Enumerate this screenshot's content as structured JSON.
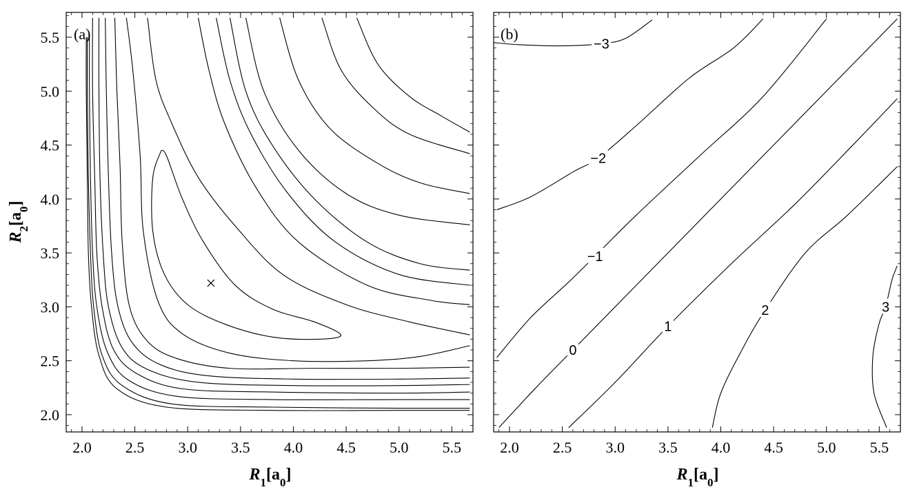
{
  "chart_data": [
    {
      "type": "contour",
      "panel_label": "(a)",
      "xlabel": "R1[a0]",
      "ylabel": "R2[a0]",
      "xlim": [
        1.85,
        5.7
      ],
      "ylim": [
        1.84,
        5.73
      ],
      "xticks": [
        "2.0",
        "2.5",
        "3.0",
        "3.5",
        "4.0",
        "4.5",
        "5.0",
        "5.5"
      ],
      "yticks": [
        "2.0",
        "2.5",
        "3.0",
        "3.5",
        "4.0",
        "4.5",
        "5.0",
        "5.5"
      ],
      "minimum_marker": {
        "symbol": "×",
        "x": 3.22,
        "y": 3.22
      },
      "contours": [
        {
          "points": [
            [
              2.75,
              4.45
            ],
            [
              2.8,
              4.4
            ],
            [
              2.95,
              4.0
            ],
            [
              3.15,
              3.6
            ],
            [
              3.45,
              3.2
            ],
            [
              3.8,
              2.98
            ],
            [
              4.2,
              2.86
            ],
            [
              4.45,
              2.74
            ],
            [
              4.25,
              2.7
            ],
            [
              3.8,
              2.72
            ],
            [
              3.35,
              2.84
            ],
            [
              3.0,
              3.02
            ],
            [
              2.78,
              3.3
            ],
            [
              2.67,
              3.7
            ],
            [
              2.67,
              4.2
            ],
            [
              2.75,
              4.45
            ]
          ]
        },
        {
          "points": [
            [
              2.62,
              5.68
            ],
            [
              2.7,
              5.1
            ],
            [
              2.85,
              4.7
            ],
            [
              3.1,
              4.2
            ],
            [
              3.45,
              3.75
            ],
            [
              3.9,
              3.3
            ],
            [
              4.5,
              3.02
            ],
            [
              5.1,
              2.86
            ],
            [
              5.67,
              2.74
            ]
          ]
        },
        {
          "points": [
            [
              2.42,
              5.68
            ],
            [
              2.48,
              5.2
            ],
            [
              2.55,
              4.4
            ],
            [
              2.58,
              3.7
            ],
            [
              2.72,
              3.05
            ],
            [
              2.95,
              2.75
            ],
            [
              3.4,
              2.57
            ],
            [
              4.0,
              2.5
            ],
            [
              4.7,
              2.5
            ],
            [
              5.2,
              2.54
            ],
            [
              5.67,
              2.64
            ]
          ]
        },
        {
          "points": [
            [
              2.31,
              5.68
            ],
            [
              2.33,
              5.0
            ],
            [
              2.36,
              4.3
            ],
            [
              2.38,
              3.6
            ],
            [
              2.45,
              3.0
            ],
            [
              2.62,
              2.68
            ],
            [
              2.9,
              2.52
            ],
            [
              3.4,
              2.43
            ],
            [
              4.2,
              2.43
            ],
            [
              5.0,
              2.43
            ],
            [
              5.67,
              2.44
            ]
          ]
        },
        {
          "points": [
            [
              2.22,
              5.68
            ],
            [
              2.23,
              5.0
            ],
            [
              2.25,
              4.2
            ],
            [
              2.28,
              3.5
            ],
            [
              2.34,
              3.0
            ],
            [
              2.48,
              2.66
            ],
            [
              2.75,
              2.46
            ],
            [
              3.2,
              2.36
            ],
            [
              4.0,
              2.33
            ],
            [
              5.0,
              2.33
            ],
            [
              5.67,
              2.34
            ]
          ]
        },
        {
          "points": [
            [
              2.16,
              5.68
            ],
            [
              2.16,
              5.0
            ],
            [
              2.17,
              4.2
            ],
            [
              2.2,
              3.5
            ],
            [
              2.25,
              3.0
            ],
            [
              2.38,
              2.62
            ],
            [
              2.62,
              2.42
            ],
            [
              3.1,
              2.3
            ],
            [
              4.0,
              2.27
            ],
            [
              5.0,
              2.27
            ],
            [
              5.67,
              2.28
            ]
          ]
        },
        {
          "points": [
            [
              2.1,
              5.68
            ],
            [
              2.1,
              5.0
            ],
            [
              2.12,
              4.2
            ],
            [
              2.14,
              3.5
            ],
            [
              2.19,
              3.0
            ],
            [
              2.3,
              2.6
            ],
            [
              2.52,
              2.38
            ],
            [
              2.95,
              2.24
            ],
            [
              3.8,
              2.21
            ],
            [
              5.0,
              2.2
            ],
            [
              5.67,
              2.21
            ]
          ]
        },
        {
          "points": [
            [
              2.07,
              5.5
            ],
            [
              2.07,
              5.0
            ],
            [
              2.08,
              4.2
            ],
            [
              2.1,
              3.5
            ],
            [
              2.14,
              3.0
            ],
            [
              2.24,
              2.58
            ],
            [
              2.44,
              2.32
            ],
            [
              2.9,
              2.17
            ],
            [
              3.8,
              2.14
            ],
            [
              5.0,
              2.14
            ],
            [
              5.67,
              2.14
            ]
          ]
        },
        {
          "points": [
            [
              2.05,
              5.5
            ],
            [
              2.05,
              5.0
            ],
            [
              2.06,
              4.2
            ],
            [
              2.08,
              3.5
            ],
            [
              2.11,
              3.0
            ],
            [
              2.19,
              2.55
            ],
            [
              2.38,
              2.27
            ],
            [
              2.85,
              2.1
            ],
            [
              3.8,
              2.07
            ],
            [
              5.0,
              2.06
            ],
            [
              5.67,
              2.06
            ]
          ]
        },
        {
          "points": [
            [
              2.04,
              5.5
            ],
            [
              2.04,
              5.0
            ],
            [
              2.05,
              4.2
            ],
            [
              2.06,
              3.5
            ],
            [
              2.09,
              3.0
            ],
            [
              2.16,
              2.55
            ],
            [
              2.33,
              2.24
            ],
            [
              2.8,
              2.07
            ],
            [
              3.8,
              2.04
            ],
            [
              5.0,
              2.04
            ],
            [
              5.67,
              2.04
            ]
          ]
        },
        {
          "points": [
            [
              3.4,
              5.68
            ],
            [
              3.55,
              5.0
            ],
            [
              3.8,
              4.5
            ],
            [
              4.2,
              4.0
            ],
            [
              4.7,
              3.6
            ],
            [
              5.2,
              3.4
            ],
            [
              5.67,
              3.34
            ]
          ]
        },
        {
          "points": [
            [
              3.27,
              5.68
            ],
            [
              3.4,
              5.1
            ],
            [
              3.6,
              4.6
            ],
            [
              3.95,
              4.05
            ],
            [
              4.4,
              3.6
            ],
            [
              5.0,
              3.3
            ],
            [
              5.67,
              3.2
            ]
          ]
        },
        {
          "points": [
            [
              3.1,
              5.68
            ],
            [
              3.2,
              5.2
            ],
            [
              3.35,
              4.7
            ],
            [
              3.65,
              4.1
            ],
            [
              4.05,
              3.6
            ],
            [
              4.7,
              3.2
            ],
            [
              5.3,
              3.06
            ],
            [
              5.67,
              3.02
            ]
          ]
        },
        {
          "points": [
            [
              3.55,
              5.68
            ],
            [
              3.72,
              5.0
            ],
            [
              4.05,
              4.45
            ],
            [
              4.5,
              4.05
            ],
            [
              5.0,
              3.85
            ],
            [
              5.67,
              3.76
            ]
          ]
        },
        {
          "points": [
            [
              3.87,
              5.68
            ],
            [
              4.05,
              5.1
            ],
            [
              4.35,
              4.65
            ],
            [
              4.8,
              4.33
            ],
            [
              5.2,
              4.15
            ],
            [
              5.67,
              4.05
            ]
          ]
        },
        {
          "points": [
            [
              4.27,
              5.68
            ],
            [
              4.45,
              5.2
            ],
            [
              4.75,
              4.85
            ],
            [
              5.1,
              4.6
            ],
            [
              5.67,
              4.42
            ]
          ]
        },
        {
          "points": [
            [
              4.6,
              5.68
            ],
            [
              4.8,
              5.25
            ],
            [
              5.1,
              4.95
            ],
            [
              5.4,
              4.77
            ],
            [
              5.67,
              4.62
            ]
          ]
        }
      ]
    },
    {
      "type": "contour",
      "panel_label": "(b)",
      "xlabel": "R1[a0]",
      "xlim": [
        1.85,
        5.7
      ],
      "ylim": [
        1.84,
        5.73
      ],
      "xticks": [
        "2.0",
        "2.5",
        "3.0",
        "3.5",
        "4.0",
        "4.5",
        "5.0",
        "5.5"
      ],
      "contours": [
        {
          "level": "−3",
          "label": "−3",
          "label_at": [
            2.87,
            5.44
          ],
          "points": [
            [
              1.85,
              5.45
            ],
            [
              2.1,
              5.43
            ],
            [
              2.5,
              5.42
            ],
            [
              2.87,
              5.44
            ],
            [
              3.1,
              5.49
            ],
            [
              3.35,
              5.66
            ]
          ]
        },
        {
          "level": "−2",
          "label": "−2",
          "label_at": [
            2.84,
            4.38
          ],
          "points": [
            [
              1.88,
              3.9
            ],
            [
              2.2,
              4.02
            ],
            [
              2.6,
              4.25
            ],
            [
              2.84,
              4.38
            ],
            [
              3.2,
              4.68
            ],
            [
              3.7,
              5.12
            ],
            [
              4.12,
              5.4
            ],
            [
              4.4,
              5.67
            ]
          ]
        },
        {
          "level": "−1",
          "label": "−1",
          "label_at": [
            2.81,
            3.47
          ],
          "points": [
            [
              1.88,
              2.53
            ],
            [
              2.2,
              2.9
            ],
            [
              2.55,
              3.22
            ],
            [
              2.81,
              3.47
            ],
            [
              3.2,
              3.85
            ],
            [
              3.8,
              4.4
            ],
            [
              4.4,
              4.95
            ],
            [
              5.0,
              5.67
            ]
          ]
        },
        {
          "level": "0",
          "label": "0",
          "label_at": [
            2.6,
            2.6
          ],
          "points": [
            [
              1.9,
              1.88
            ],
            [
              2.25,
              2.25
            ],
            [
              2.6,
              2.6
            ],
            [
              3.2,
              3.2
            ],
            [
              3.9,
              3.9
            ],
            [
              4.6,
              4.6
            ],
            [
              5.2,
              5.2
            ],
            [
              5.67,
              5.67
            ]
          ]
        },
        {
          "level": "1",
          "label": "1",
          "label_at": [
            3.5,
            2.82
          ],
          "points": [
            [
              2.56,
              1.88
            ],
            [
              3.0,
              2.3
            ],
            [
              3.5,
              2.82
            ],
            [
              4.1,
              3.4
            ],
            [
              4.7,
              3.95
            ],
            [
              5.25,
              4.5
            ],
            [
              5.67,
              4.93
            ]
          ]
        },
        {
          "level": "2",
          "label": "2",
          "label_at": [
            4.42,
            2.97
          ],
          "points": [
            [
              3.92,
              1.88
            ],
            [
              4.0,
              2.2
            ],
            [
              4.2,
              2.6
            ],
            [
              4.42,
              2.97
            ],
            [
              4.8,
              3.5
            ],
            [
              5.2,
              3.85
            ],
            [
              5.67,
              4.3
            ]
          ]
        },
        {
          "level": "3",
          "label": "3",
          "label_at": [
            5.56,
            3.0
          ],
          "points": [
            [
              5.57,
              1.88
            ],
            [
              5.45,
              2.2
            ],
            [
              5.44,
              2.55
            ],
            [
              5.5,
              2.85
            ],
            [
              5.56,
              3.0
            ],
            [
              5.62,
              3.25
            ],
            [
              5.67,
              3.38
            ]
          ]
        }
      ]
    }
  ]
}
